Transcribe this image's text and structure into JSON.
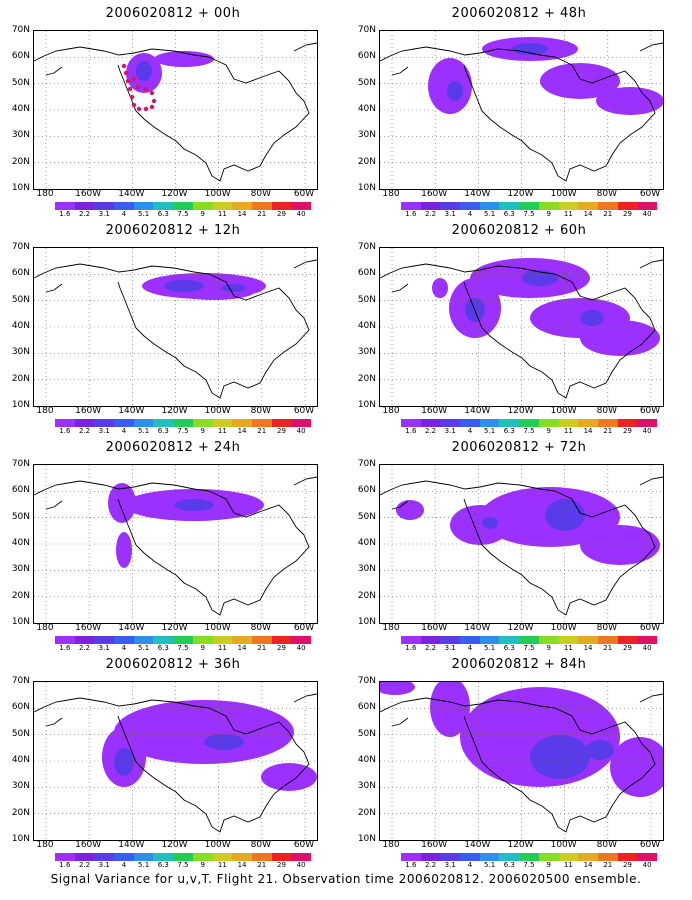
{
  "panels": [
    {
      "title": "2006020812 + 00h",
      "col": 0,
      "row": 0
    },
    {
      "title": "2006020812 + 48h",
      "col": 1,
      "row": 0
    },
    {
      "title": "2006020812 + 12h",
      "col": 0,
      "row": 1
    },
    {
      "title": "2006020812 + 60h",
      "col": 1,
      "row": 1
    },
    {
      "title": "2006020812 + 24h",
      "col": 0,
      "row": 2
    },
    {
      "title": "2006020812 + 72h",
      "col": 1,
      "row": 2
    },
    {
      "title": "2006020812 + 36h",
      "col": 0,
      "row": 3
    },
    {
      "title": "2006020812 + 84h",
      "col": 1,
      "row": 3
    }
  ],
  "lat_labels": [
    "70N",
    "60N",
    "50N",
    "40N",
    "30N",
    "20N",
    "10N"
  ],
  "lon_labels": [
    "180",
    "160W",
    "140W",
    "120W",
    "100W",
    "80W",
    "60W"
  ],
  "colorbar": {
    "labels": [
      "1.6",
      "2.2",
      "3.1",
      "4",
      "5.1",
      "6.3",
      "7.5",
      "9",
      "11",
      "14",
      "21",
      "29",
      "40"
    ],
    "colors": [
      "#9b30ff",
      "#7a22e0",
      "#5a3bea",
      "#3b5cf0",
      "#2e8fe8",
      "#20c0c0",
      "#22cc55",
      "#88dd22",
      "#cccc22",
      "#e6aa22",
      "#ee7722",
      "#ee2222",
      "#dd1166"
    ]
  },
  "footer": "Signal Variance for u,v,T. Flight 21. Observation time 2006020812. 2006020500 ensemble."
}
